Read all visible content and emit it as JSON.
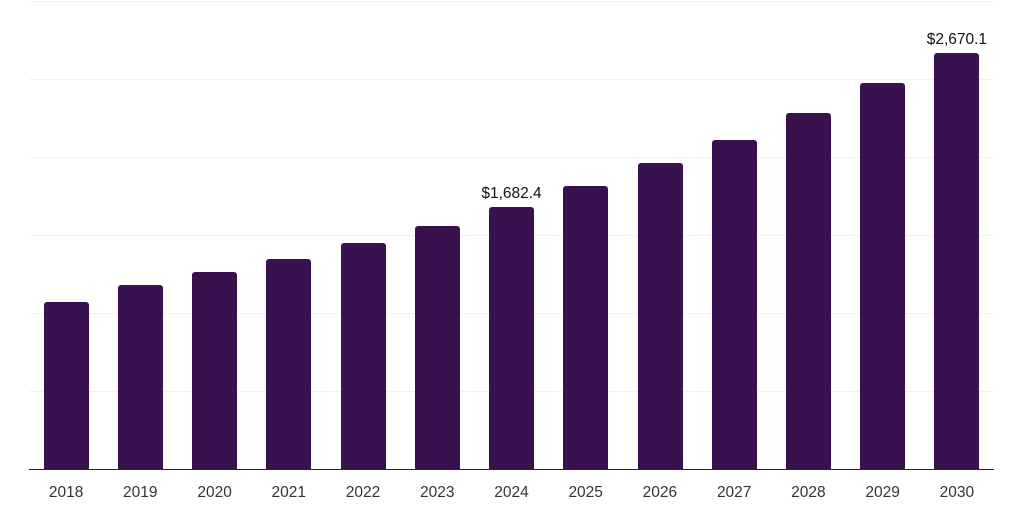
{
  "chart": {
    "background_color": "#ffffff",
    "bar_color": "#38124e",
    "gridline_color": "#f2f2f2",
    "axis_line_color": "#262626",
    "data_label_color": "#111111",
    "tick_label_color": "#333333"
  },
  "chart_data": {
    "type": "bar",
    "title": "",
    "xlabel": "",
    "ylabel": "",
    "categories": [
      "2018",
      "2019",
      "2020",
      "2021",
      "2022",
      "2023",
      "2024",
      "2025",
      "2026",
      "2027",
      "2028",
      "2029",
      "2030"
    ],
    "values": [
      1070,
      1180,
      1263,
      1346,
      1449,
      1558,
      1682.4,
      1814,
      1962,
      2109,
      2282,
      2474,
      2670.1
    ],
    "point_labels": [
      {
        "category": "2024",
        "text": "$1,682.4"
      },
      {
        "category": "2030",
        "text": "$2,670.1"
      }
    ],
    "ylim": [
      0,
      3000
    ],
    "gridline_interval": 500,
    "grid": true,
    "y_tick_labels_shown": false,
    "legend": false
  }
}
